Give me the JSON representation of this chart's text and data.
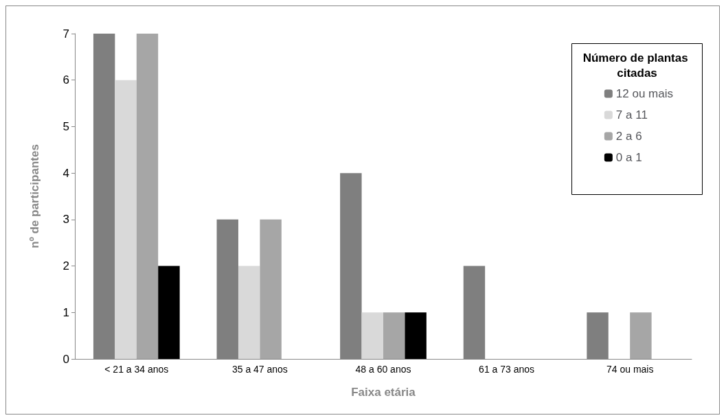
{
  "chart_data": {
    "type": "bar",
    "xlabel": "Faixa etária",
    "ylabel": "nº de participantes",
    "legend_title": "Número de plantas citadas",
    "categories": [
      "< 21 a 34 anos",
      "35 a 47 anos",
      "48 a 60 anos",
      "61 a 73 anos",
      "74 ou mais"
    ],
    "series": [
      {
        "name": "12 ou mais",
        "color": "#7f7f7f",
        "values": [
          7,
          3,
          4,
          2,
          1
        ]
      },
      {
        "name": "7 a 11",
        "color": "#d9d9d9",
        "values": [
          6,
          2,
          1,
          0,
          0
        ]
      },
      {
        "name": "2 a 6",
        "color": "#a6a6a6",
        "values": [
          7,
          3,
          1,
          0,
          1
        ]
      },
      {
        "name": "0 a 1",
        "color": "#000000",
        "values": [
          2,
          0,
          1,
          0,
          0
        ]
      }
    ],
    "ylim": [
      0,
      7
    ],
    "yticks": [
      0,
      1,
      2,
      3,
      4,
      5,
      6,
      7
    ],
    "grid": false,
    "legend": "top right"
  }
}
